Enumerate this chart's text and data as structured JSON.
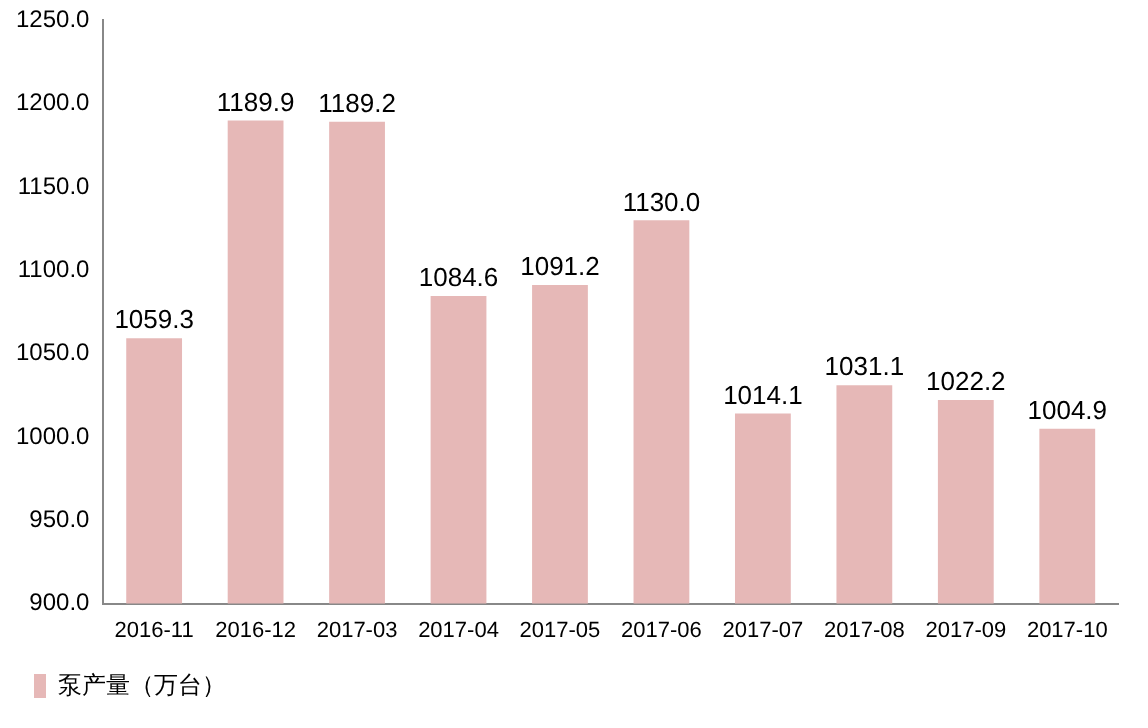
{
  "chart_data": {
    "type": "bar",
    "categories": [
      "2016-11",
      "2016-12",
      "2017-03",
      "2017-04",
      "2017-05",
      "2017-06",
      "2017-07",
      "2017-08",
      "2017-09",
      "2017-10"
    ],
    "series": [
      {
        "name": "泵产量（万台）",
        "color": "#e6b8b7",
        "values": [
          1059.3,
          1189.9,
          1189.2,
          1084.6,
          1091.2,
          1130.0,
          1014.1,
          1031.1,
          1022.2,
          1004.9
        ]
      }
    ],
    "ylim": [
      900,
      1250
    ],
    "yticks": [
      {
        "value": 900,
        "label": "900.0"
      },
      {
        "value": 950,
        "label": "950.0"
      },
      {
        "value": 1000,
        "label": "1000.0"
      },
      {
        "value": 1050,
        "label": "1050.0"
      },
      {
        "value": 1100,
        "label": "1100.0"
      },
      {
        "value": 1150,
        "label": "1150.0"
      },
      {
        "value": 1200,
        "label": "1200.0"
      },
      {
        "value": 1250,
        "label": "1250.0"
      }
    ],
    "value_labels": [
      "1059.3",
      "1189.9",
      "1189.2",
      "1084.6",
      "1091.2",
      "1130.0",
      "1014.1",
      "1031.1",
      "1022.2",
      "1004.9"
    ],
    "grid": false,
    "legend": "bottom left"
  }
}
